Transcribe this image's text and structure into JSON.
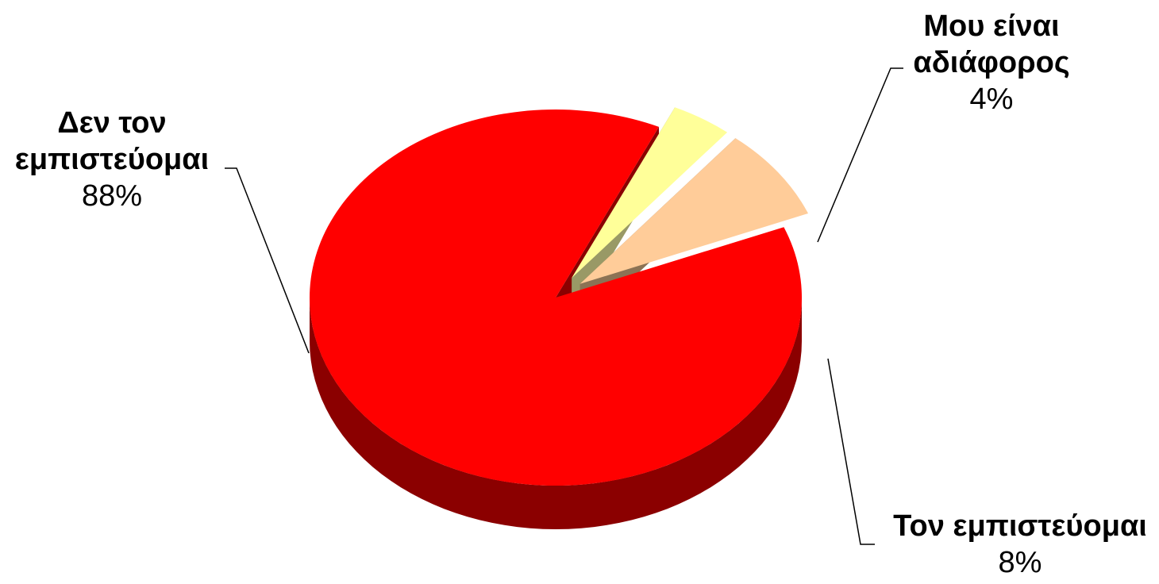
{
  "chart_data": {
    "type": "pie",
    "style": "3d exploded pie",
    "legend": "none (data labels beside slices)",
    "slices": [
      {
        "label": "Δεν τον εμπιστεύομαι",
        "value": 88,
        "value_label": "88%",
        "color": "#ff0000",
        "side_color": "#8b0000"
      },
      {
        "label": "Μου είναι αδιάφορος",
        "value": 4,
        "value_label": "4%",
        "color": "#ffff99",
        "side_color": "#999966"
      },
      {
        "label": "Τον εμπιστεύομαι",
        "value": 8,
        "value_label": "8%",
        "color": "#ffcc99",
        "side_color": "#8b7355"
      }
    ]
  }
}
